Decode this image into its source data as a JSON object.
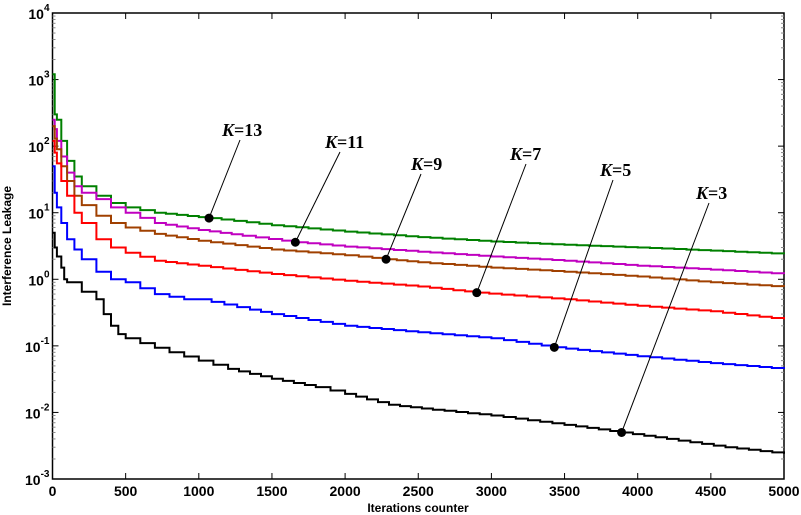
{
  "chart_data": {
    "type": "line",
    "title": "",
    "xlabel": "Iterations counter",
    "ylabel": "Interference Leakage",
    "xlim": [
      0,
      5000
    ],
    "ylim": [
      0.001,
      10000
    ],
    "yscale": "log",
    "grid": false,
    "x_ticks": [
      "0",
      "500",
      "1000",
      "1500",
      "2000",
      "2500",
      "3000",
      "3500",
      "4000",
      "4500",
      "5000"
    ],
    "y_tick_base": "10",
    "y_tick_exponents": [
      "4",
      "3",
      "2",
      "1",
      "0",
      "-1",
      "-2",
      "-3"
    ],
    "series": [
      {
        "name": "K=13",
        "color": "#008000",
        "x": [
          0,
          15,
          30,
          60,
          100,
          150,
          200,
          300,
          400,
          500,
          700,
          1000,
          1070,
          1500,
          2000,
          2500,
          3000,
          3500,
          4000,
          4500,
          5000
        ],
        "y": [
          1200,
          300,
          250,
          120,
          60,
          35,
          25,
          18,
          14,
          12,
          10,
          8.6,
          8.3,
          6.5,
          5.2,
          4.3,
          3.7,
          3.3,
          3.0,
          2.7,
          2.4
        ],
        "marker": {
          "x": 1070,
          "y": 8.3
        }
      },
      {
        "name": "K=11",
        "color": "#c000c0",
        "x": [
          0,
          15,
          30,
          60,
          100,
          150,
          200,
          300,
          400,
          500,
          700,
          1000,
          1300,
          1660,
          2000,
          2500,
          3000,
          3500,
          4000,
          4500,
          5000
        ],
        "y": [
          250,
          180,
          120,
          70,
          40,
          25,
          20,
          16,
          12,
          10,
          7,
          5.5,
          4.5,
          3.6,
          3.1,
          2.6,
          2.2,
          1.9,
          1.6,
          1.4,
          1.2
        ],
        "marker": {
          "x": 1660,
          "y": 3.6
        }
      },
      {
        "name": "K=9",
        "color": "#a04000",
        "x": [
          0,
          15,
          30,
          60,
          100,
          150,
          200,
          300,
          400,
          500,
          700,
          1000,
          1500,
          2000,
          2280,
          2500,
          3000,
          3500,
          4000,
          4500,
          5000
        ],
        "y": [
          200,
          130,
          90,
          50,
          30,
          18,
          13,
          9,
          7,
          6,
          4.8,
          3.8,
          2.8,
          2.3,
          2.0,
          1.8,
          1.5,
          1.3,
          1.1,
          0.9,
          0.77
        ],
        "marker": {
          "x": 2280,
          "y": 2.0
        }
      },
      {
        "name": "K=7",
        "color": "#ff0000",
        "x": [
          0,
          15,
          30,
          60,
          100,
          150,
          200,
          300,
          400,
          500,
          700,
          1000,
          1500,
          2000,
          2500,
          2900,
          3500,
          4000,
          4500,
          5000
        ],
        "y": [
          120,
          80,
          55,
          30,
          18,
          10,
          7,
          4,
          3,
          2.5,
          1.9,
          1.6,
          1.2,
          0.95,
          0.78,
          0.63,
          0.5,
          0.4,
          0.33,
          0.25
        ],
        "marker": {
          "x": 2900,
          "y": 0.63
        }
      },
      {
        "name": "K=5",
        "color": "#0000ff",
        "x": [
          0,
          15,
          30,
          60,
          100,
          150,
          200,
          300,
          400,
          500,
          700,
          900,
          1000,
          1350,
          1500,
          2000,
          2500,
          3000,
          3430,
          4000,
          4500,
          5000
        ],
        "y": [
          50,
          20,
          12,
          7,
          4,
          2.8,
          2,
          1.3,
          1.0,
          0.9,
          0.6,
          0.5,
          0.5,
          0.35,
          0.3,
          0.2,
          0.16,
          0.13,
          0.095,
          0.07,
          0.055,
          0.045
        ],
        "marker": {
          "x": 3430,
          "y": 0.095
        }
      },
      {
        "name": "K=3",
        "color": "#000000",
        "x": [
          0,
          15,
          30,
          60,
          80,
          100,
          200,
          300,
          350,
          400,
          450,
          500,
          600,
          800,
          1000,
          1200,
          1500,
          1800,
          2000,
          2300,
          2600,
          3000,
          3500,
          3890,
          4200,
          4600,
          5000
        ],
        "y": [
          5,
          3,
          2.2,
          1.5,
          1,
          0.9,
          0.65,
          0.5,
          0.3,
          0.2,
          0.15,
          0.13,
          0.11,
          0.08,
          0.06,
          0.045,
          0.032,
          0.024,
          0.019,
          0.013,
          0.011,
          0.009,
          0.0065,
          0.005,
          0.004,
          0.003,
          0.0024
        ],
        "marker": {
          "x": 3890,
          "y": 0.005
        }
      }
    ],
    "annotations": [
      {
        "prefix": "K",
        "text": "=13"
      },
      {
        "prefix": "K",
        "text": "=11"
      },
      {
        "prefix": "K",
        "text": "=9"
      },
      {
        "prefix": "K",
        "text": "=7"
      },
      {
        "prefix": "K",
        "text": "=5"
      },
      {
        "prefix": "K",
        "text": "=3"
      }
    ]
  }
}
